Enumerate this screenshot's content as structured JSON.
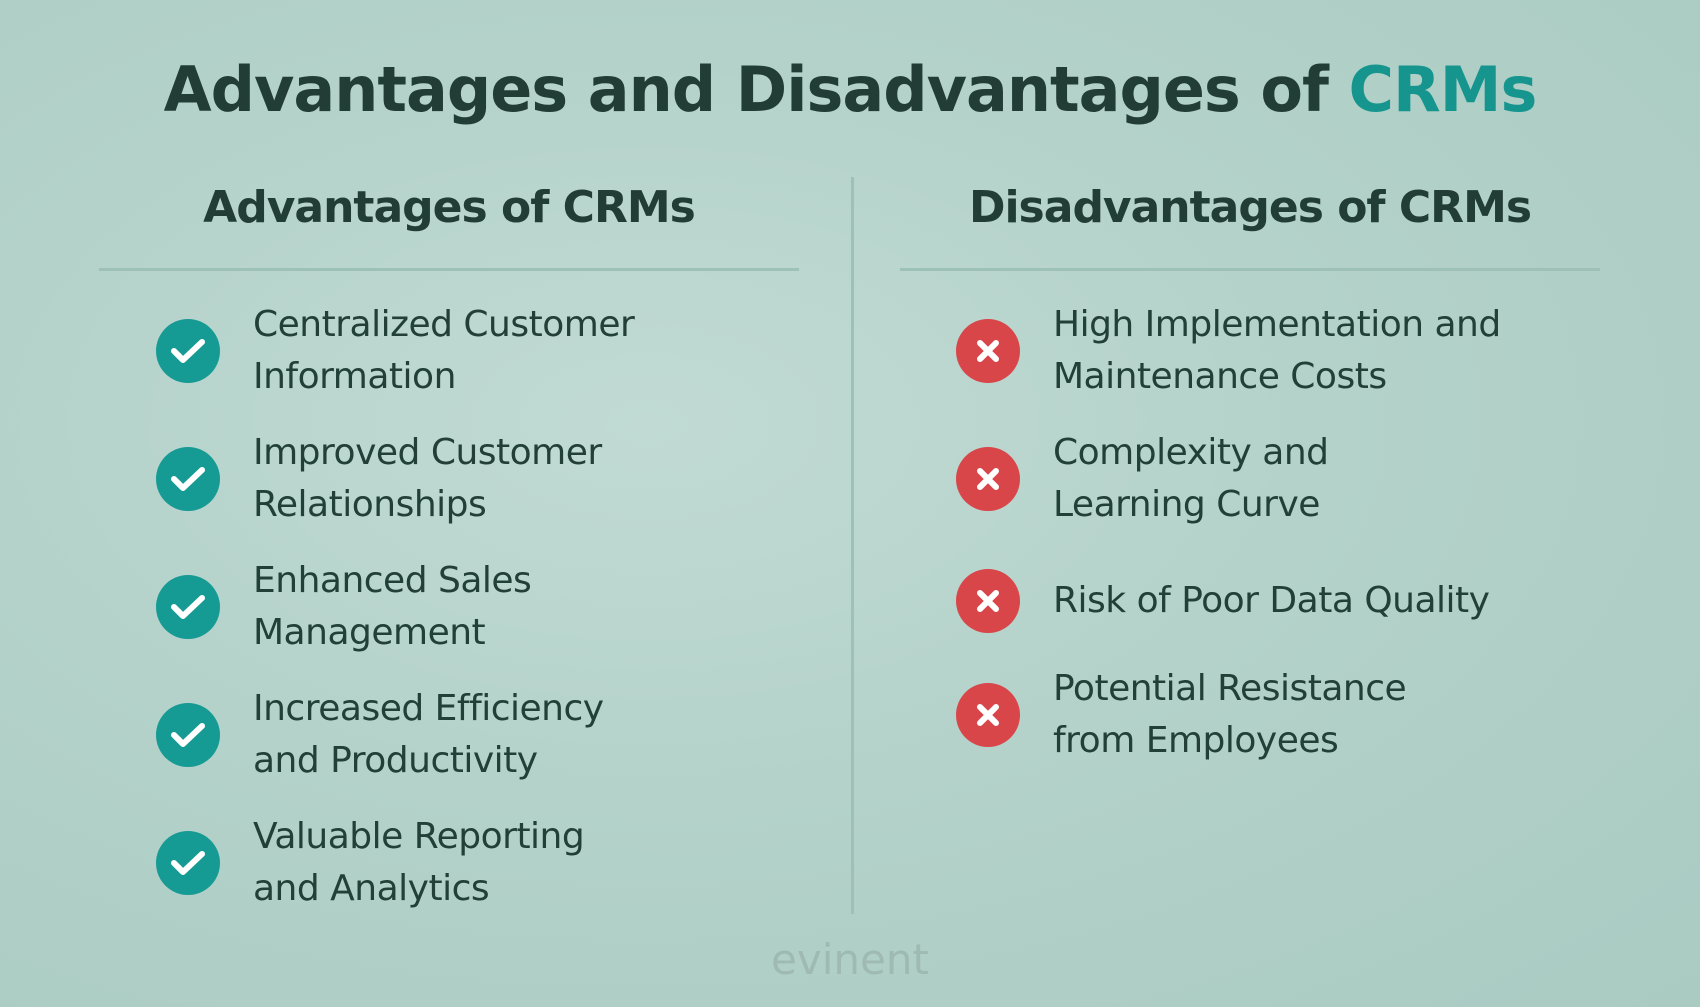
{
  "title": {
    "main": "Advantages and Disadvantages of ",
    "accent": "CRMs"
  },
  "advantages": {
    "heading": "Advantages of CRMs",
    "items": [
      {
        "line1": "Centralized Customer",
        "line2": "Information"
      },
      {
        "line1": "Improved Customer",
        "line2": "Relationships"
      },
      {
        "line1": "Enhanced Sales",
        "line2": "Management"
      },
      {
        "line1": "Increased Efficiency",
        "line2": "and Productivity"
      },
      {
        "line1": "Valuable Reporting",
        "line2": "and Analytics"
      }
    ]
  },
  "disadvantages": {
    "heading": "Disadvantages of CRMs",
    "items": [
      {
        "line1": "High Implementation and",
        "line2": "Maintenance Costs"
      },
      {
        "line1": "Complexity and",
        "line2": "Learning Curve"
      },
      {
        "line1": "Risk of Poor Data Quality",
        "line2": ""
      },
      {
        "line1": "Potential Resistance",
        "line2": "from Employees"
      }
    ]
  },
  "brand": {
    "logo_text": "evinent"
  },
  "icons": {
    "advantage": "check-circle-icon",
    "disadvantage": "x-circle-icon"
  },
  "colors": {
    "accent_teal": "#16958f",
    "check_green": "#169a94",
    "cross_red": "#d8464a",
    "text_dark": "#223d36"
  }
}
